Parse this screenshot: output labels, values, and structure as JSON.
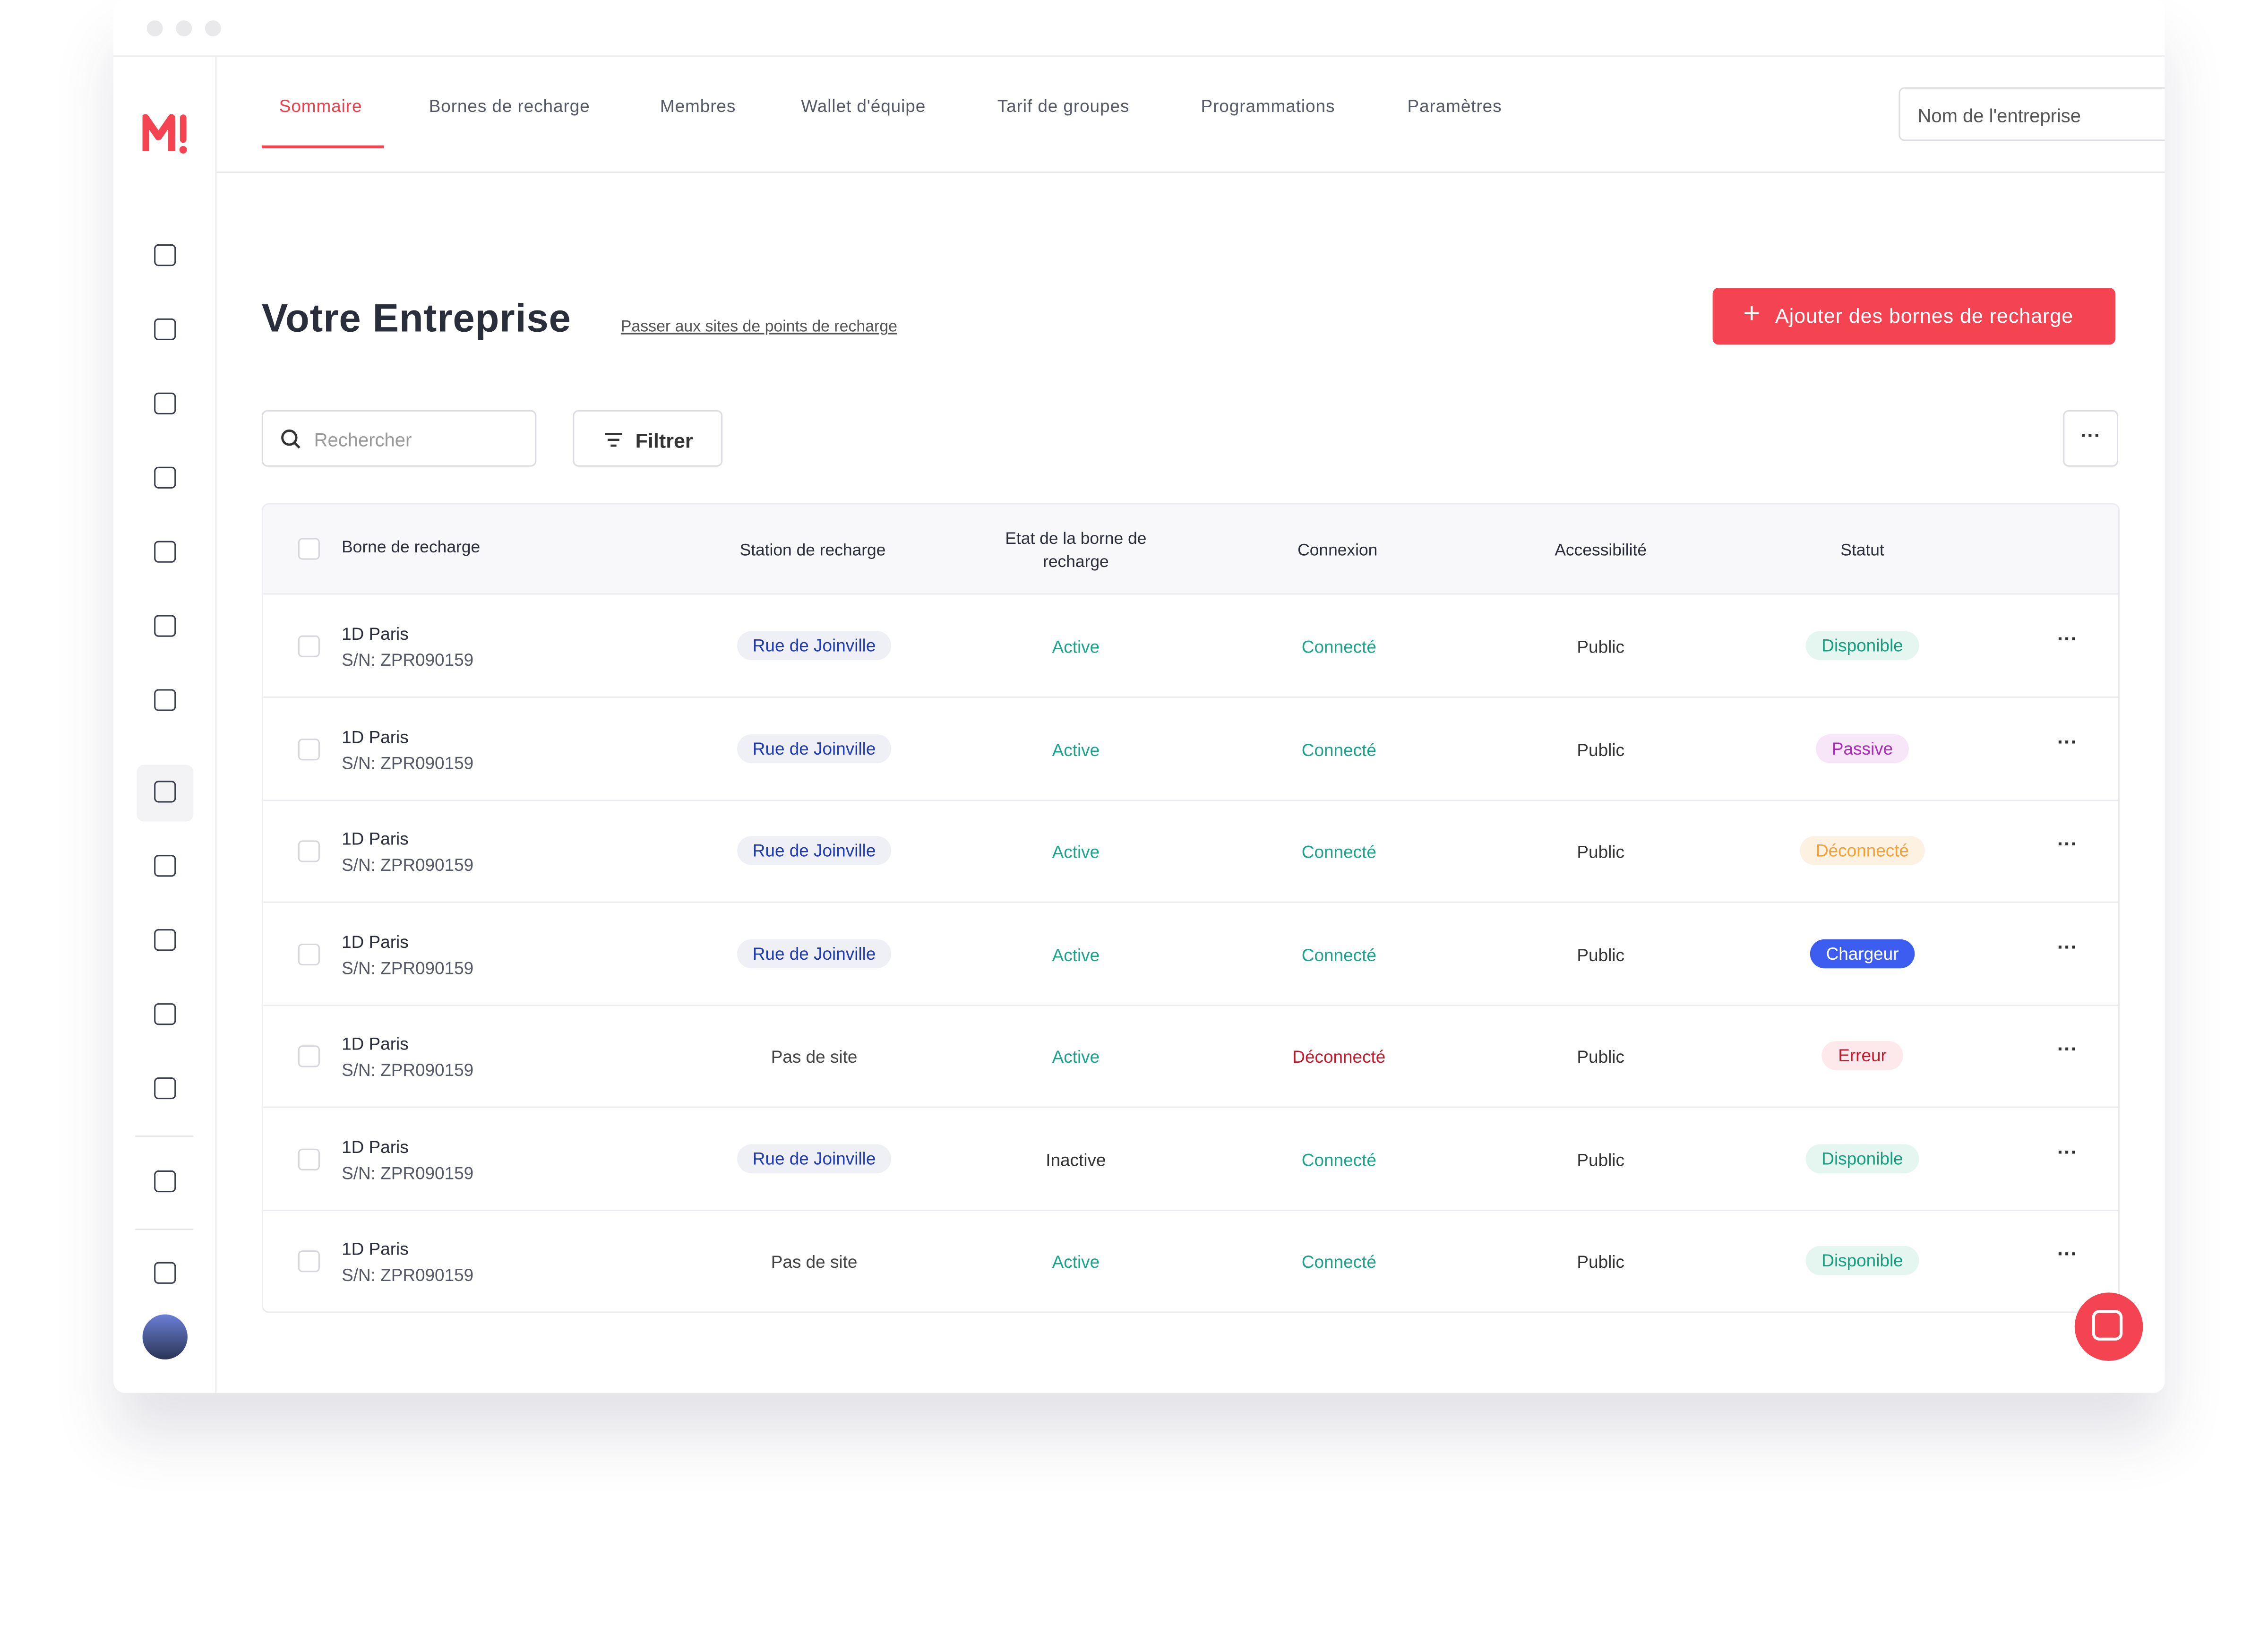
{
  "nav": {
    "tabs": [
      "Sommaire",
      "Bornes de recharge",
      "Membres",
      "Wallet d'équipe",
      "Tarif de groupes",
      "Programmations",
      "Paramètres"
    ],
    "company_select": "Nom de l'entreprise"
  },
  "header": {
    "title": "Votre Entreprise",
    "link": "Passer aux sites de points de recharge",
    "button": "Ajouter des bornes de recharge"
  },
  "toolbar": {
    "search_placeholder": "Rechercher",
    "filter": "Filtrer"
  },
  "table": {
    "columns": [
      "Borne de recharge",
      "Station de recharge",
      "Etat de la borne de recharge",
      "Connexion",
      "Accessibilité",
      "Statut"
    ],
    "rows": [
      {
        "name": "1D Paris",
        "serial": "S/N: ZPR090159",
        "station": "Rue de Joinville",
        "station_kind": "tag",
        "state": "Active",
        "state_kind": "ok",
        "connection": "Connecté",
        "connection_kind": "ok",
        "access": "Public",
        "status": "Disponible",
        "status_kind": "green"
      },
      {
        "name": "1D Paris",
        "serial": "S/N: ZPR090159",
        "station": "Rue de Joinville",
        "station_kind": "tag",
        "state": "Active",
        "state_kind": "ok",
        "connection": "Connecté",
        "connection_kind": "ok",
        "access": "Public",
        "status": "Passive",
        "status_kind": "purple"
      },
      {
        "name": "1D Paris",
        "serial": "S/N: ZPR090159",
        "station": "Rue de Joinville",
        "station_kind": "tag",
        "state": "Active",
        "state_kind": "ok",
        "connection": "Connecté",
        "connection_kind": "ok",
        "access": "Public",
        "status": "Déconnecté",
        "status_kind": "orange"
      },
      {
        "name": "1D Paris",
        "serial": "S/N: ZPR090159",
        "station": "Rue de Joinville",
        "station_kind": "tag",
        "state": "Active",
        "state_kind": "ok",
        "connection": "Connecté",
        "connection_kind": "ok",
        "access": "Public",
        "status": "Chargeur",
        "status_kind": "blue"
      },
      {
        "name": "1D Paris",
        "serial": "S/N: ZPR090159",
        "station": "Pas de site",
        "station_kind": "plain",
        "state": "Active",
        "state_kind": "ok",
        "connection": "Déconnecté",
        "connection_kind": "error",
        "access": "Public",
        "status": "Erreur",
        "status_kind": "red"
      },
      {
        "name": "1D Paris",
        "serial": "S/N: ZPR090159",
        "station": "Rue de Joinville",
        "station_kind": "tag",
        "state": "Inactive",
        "state_kind": "plain",
        "connection": "Connecté",
        "connection_kind": "ok",
        "access": "Public",
        "status": "Disponible",
        "status_kind": "green"
      },
      {
        "name": "1D Paris",
        "serial": "S/N: ZPR090159",
        "station": "Pas de site",
        "station_kind": "plain",
        "state": "Active",
        "state_kind": "ok",
        "connection": "Connecté",
        "connection_kind": "ok",
        "access": "Public",
        "status": "Disponible",
        "status_kind": "green"
      }
    ]
  }
}
